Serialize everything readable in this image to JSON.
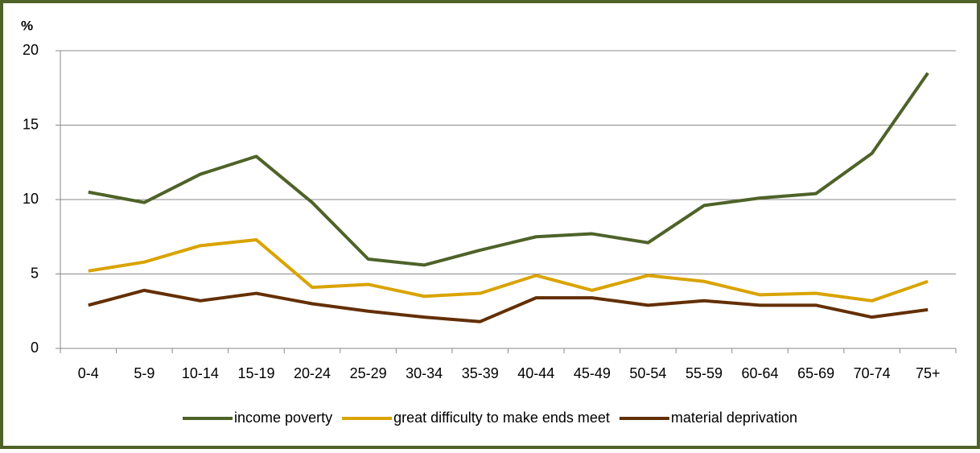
{
  "chart_data": {
    "type": "line",
    "y_axis_label": "%",
    "categories": [
      "0-4",
      "5-9",
      "10-14",
      "15-19",
      "20-24",
      "25-29",
      "30-34",
      "35-39",
      "40-44",
      "45-49",
      "50-54",
      "55-59",
      "60-64",
      "65-69",
      "70-74",
      "75+"
    ],
    "series": [
      {
        "name": "income poverty",
        "color": "#4f6228",
        "values": [
          10.5,
          9.8,
          11.7,
          12.9,
          9.8,
          6.0,
          5.6,
          6.6,
          7.5,
          7.7,
          7.1,
          9.6,
          10.1,
          10.4,
          13.1,
          18.5
        ]
      },
      {
        "name": "great difficulty to make ends meet",
        "color": "#d9a300",
        "values": [
          5.2,
          5.8,
          6.9,
          7.3,
          4.1,
          4.3,
          3.5,
          3.7,
          4.9,
          3.9,
          4.9,
          4.5,
          3.6,
          3.7,
          3.2,
          4.5
        ]
      },
      {
        "name": "material deprivation",
        "color": "#632f00",
        "values": [
          2.9,
          3.9,
          3.2,
          3.7,
          3.0,
          2.5,
          2.1,
          1.8,
          3.4,
          3.4,
          2.9,
          3.2,
          2.9,
          2.9,
          2.1,
          2.6
        ]
      }
    ],
    "ylim": [
      0,
      20
    ],
    "yticks": [
      0,
      5,
      10,
      15,
      20
    ],
    "grid": true,
    "legend": "bottom"
  }
}
